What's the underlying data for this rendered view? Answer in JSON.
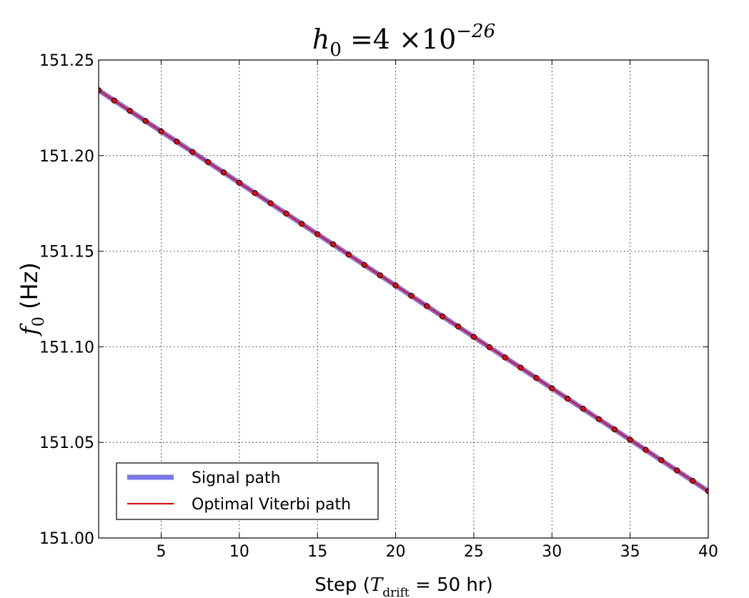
{
  "chart_data": {
    "type": "line",
    "title": {
      "base": "h",
      "sub": "0",
      "mid": " =4 ×10",
      "exp": "−26"
    },
    "xlabel": {
      "pre": "Step (",
      "var": "T",
      "sub": "drift",
      "post": " = 50 hr)"
    },
    "ylabel": {
      "var": "f",
      "sub": "0",
      "post": " (Hz)"
    },
    "xlim": [
      1,
      40
    ],
    "ylim": [
      151.0,
      151.25
    ],
    "xticks": [
      5,
      10,
      15,
      20,
      25,
      30,
      35,
      40
    ],
    "yticks": [
      151.0,
      151.05,
      151.1,
      151.15,
      151.2,
      151.25
    ],
    "ytick_labels": [
      "151.00",
      "151.05",
      "151.10",
      "151.15",
      "151.20",
      "151.25"
    ],
    "grid": true,
    "legend_position": "lower-left",
    "series": [
      {
        "name": "Signal path",
        "color": "#7777ee",
        "style": "thick-line",
        "x": [
          1,
          40
        ],
        "y": [
          151.2342,
          151.0245
        ]
      },
      {
        "name": "Optimal Viterbi path",
        "color": "#ff0000",
        "style": "line-with-markers",
        "x": [
          1,
          2,
          3,
          4,
          5,
          6,
          7,
          8,
          9,
          10,
          11,
          12,
          13,
          14,
          15,
          16,
          17,
          18,
          19,
          20,
          21,
          22,
          23,
          24,
          25,
          26,
          27,
          28,
          29,
          30,
          31,
          32,
          33,
          34,
          35,
          36,
          37,
          38,
          39,
          40
        ],
        "y": [
          151.2342,
          151.2288,
          151.2234,
          151.2181,
          151.2127,
          151.2073,
          151.2019,
          151.1966,
          151.1912,
          151.1858,
          151.1804,
          151.1751,
          151.1697,
          151.1643,
          151.1589,
          151.1536,
          151.1482,
          151.1428,
          151.1374,
          151.1321,
          151.1267,
          151.1213,
          151.1159,
          151.1106,
          151.1052,
          151.0998,
          151.0944,
          151.0891,
          151.0837,
          151.0783,
          151.0729,
          151.0676,
          151.0622,
          151.0568,
          151.0514,
          151.0461,
          151.0407,
          151.0353,
          151.0299,
          151.0245
        ]
      }
    ]
  }
}
